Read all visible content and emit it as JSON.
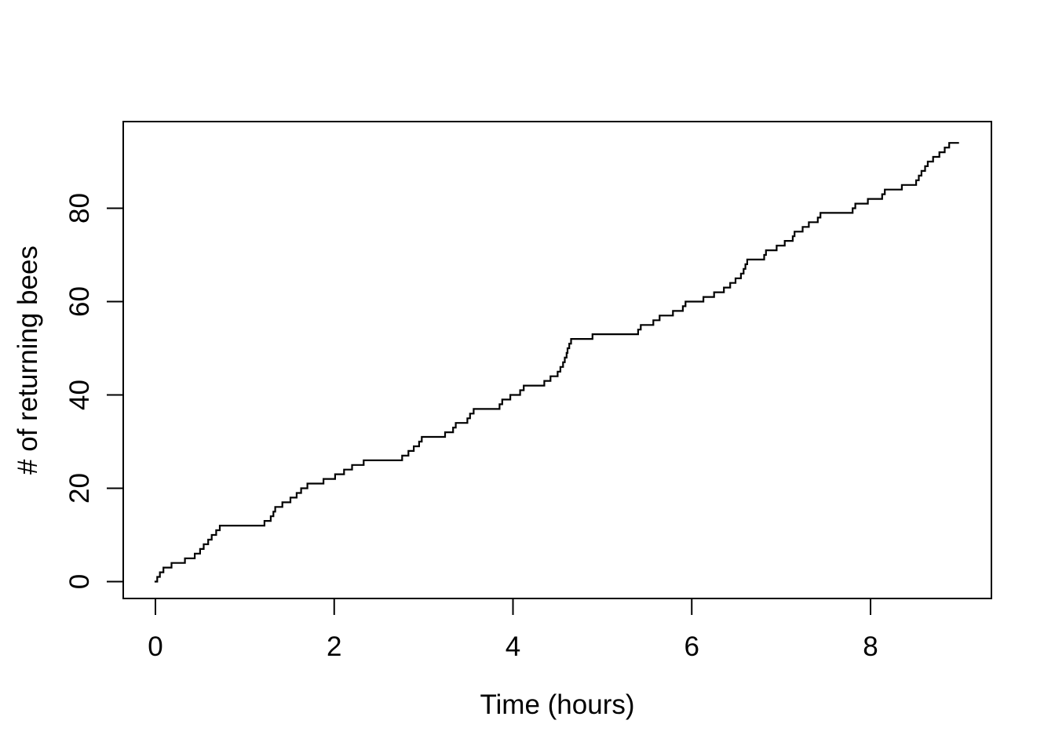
{
  "figure": {
    "background_color": "#ffffff",
    "line_color": "#000000",
    "text_color": "#000000"
  },
  "chart_data": {
    "type": "line",
    "subtype": "step-after",
    "title": "",
    "xlabel": "Time (hours)",
    "ylabel": "# of returning bees",
    "xlim": [
      0,
      9
    ],
    "ylim": [
      0,
      95
    ],
    "x_ticks": [
      0,
      2,
      4,
      6,
      8
    ],
    "y_ticks": [
      0,
      20,
      40,
      60,
      80
    ],
    "grid": false,
    "legend_position": "none",
    "description": "Cumulative number of returning bees over time; the curve steps up by one at each arrival event, starting at (0,0) and ending at about 94 bees near 9 hours.",
    "start_point": {
      "t": 0,
      "count": 0
    },
    "end_time": 8.98,
    "final_count": 94,
    "event_times": [
      0.02,
      0.05,
      0.09,
      0.18,
      0.33,
      0.44,
      0.5,
      0.54,
      0.59,
      0.63,
      0.68,
      0.72,
      1.22,
      1.29,
      1.32,
      1.34,
      1.42,
      1.51,
      1.58,
      1.63,
      1.7,
      1.88,
      2.01,
      2.11,
      2.2,
      2.33,
      2.76,
      2.83,
      2.89,
      2.95,
      2.98,
      3.24,
      3.33,
      3.36,
      3.49,
      3.52,
      3.56,
      3.85,
      3.88,
      3.97,
      4.08,
      4.12,
      4.35,
      4.42,
      4.5,
      4.53,
      4.56,
      4.58,
      4.6,
      4.61,
      4.63,
      4.65,
      4.89,
      5.4,
      5.43,
      5.57,
      5.64,
      5.79,
      5.9,
      5.93,
      6.13,
      6.25,
      6.36,
      6.43,
      6.49,
      6.55,
      6.58,
      6.6,
      6.62,
      6.81,
      6.83,
      6.95,
      7.04,
      7.13,
      7.15,
      7.24,
      7.31,
      7.41,
      7.44,
      7.8,
      7.83,
      7.97,
      8.13,
      8.16,
      8.35,
      8.51,
      8.54,
      8.57,
      8.61,
      8.64,
      8.7,
      8.77,
      8.83,
      8.88
    ]
  }
}
